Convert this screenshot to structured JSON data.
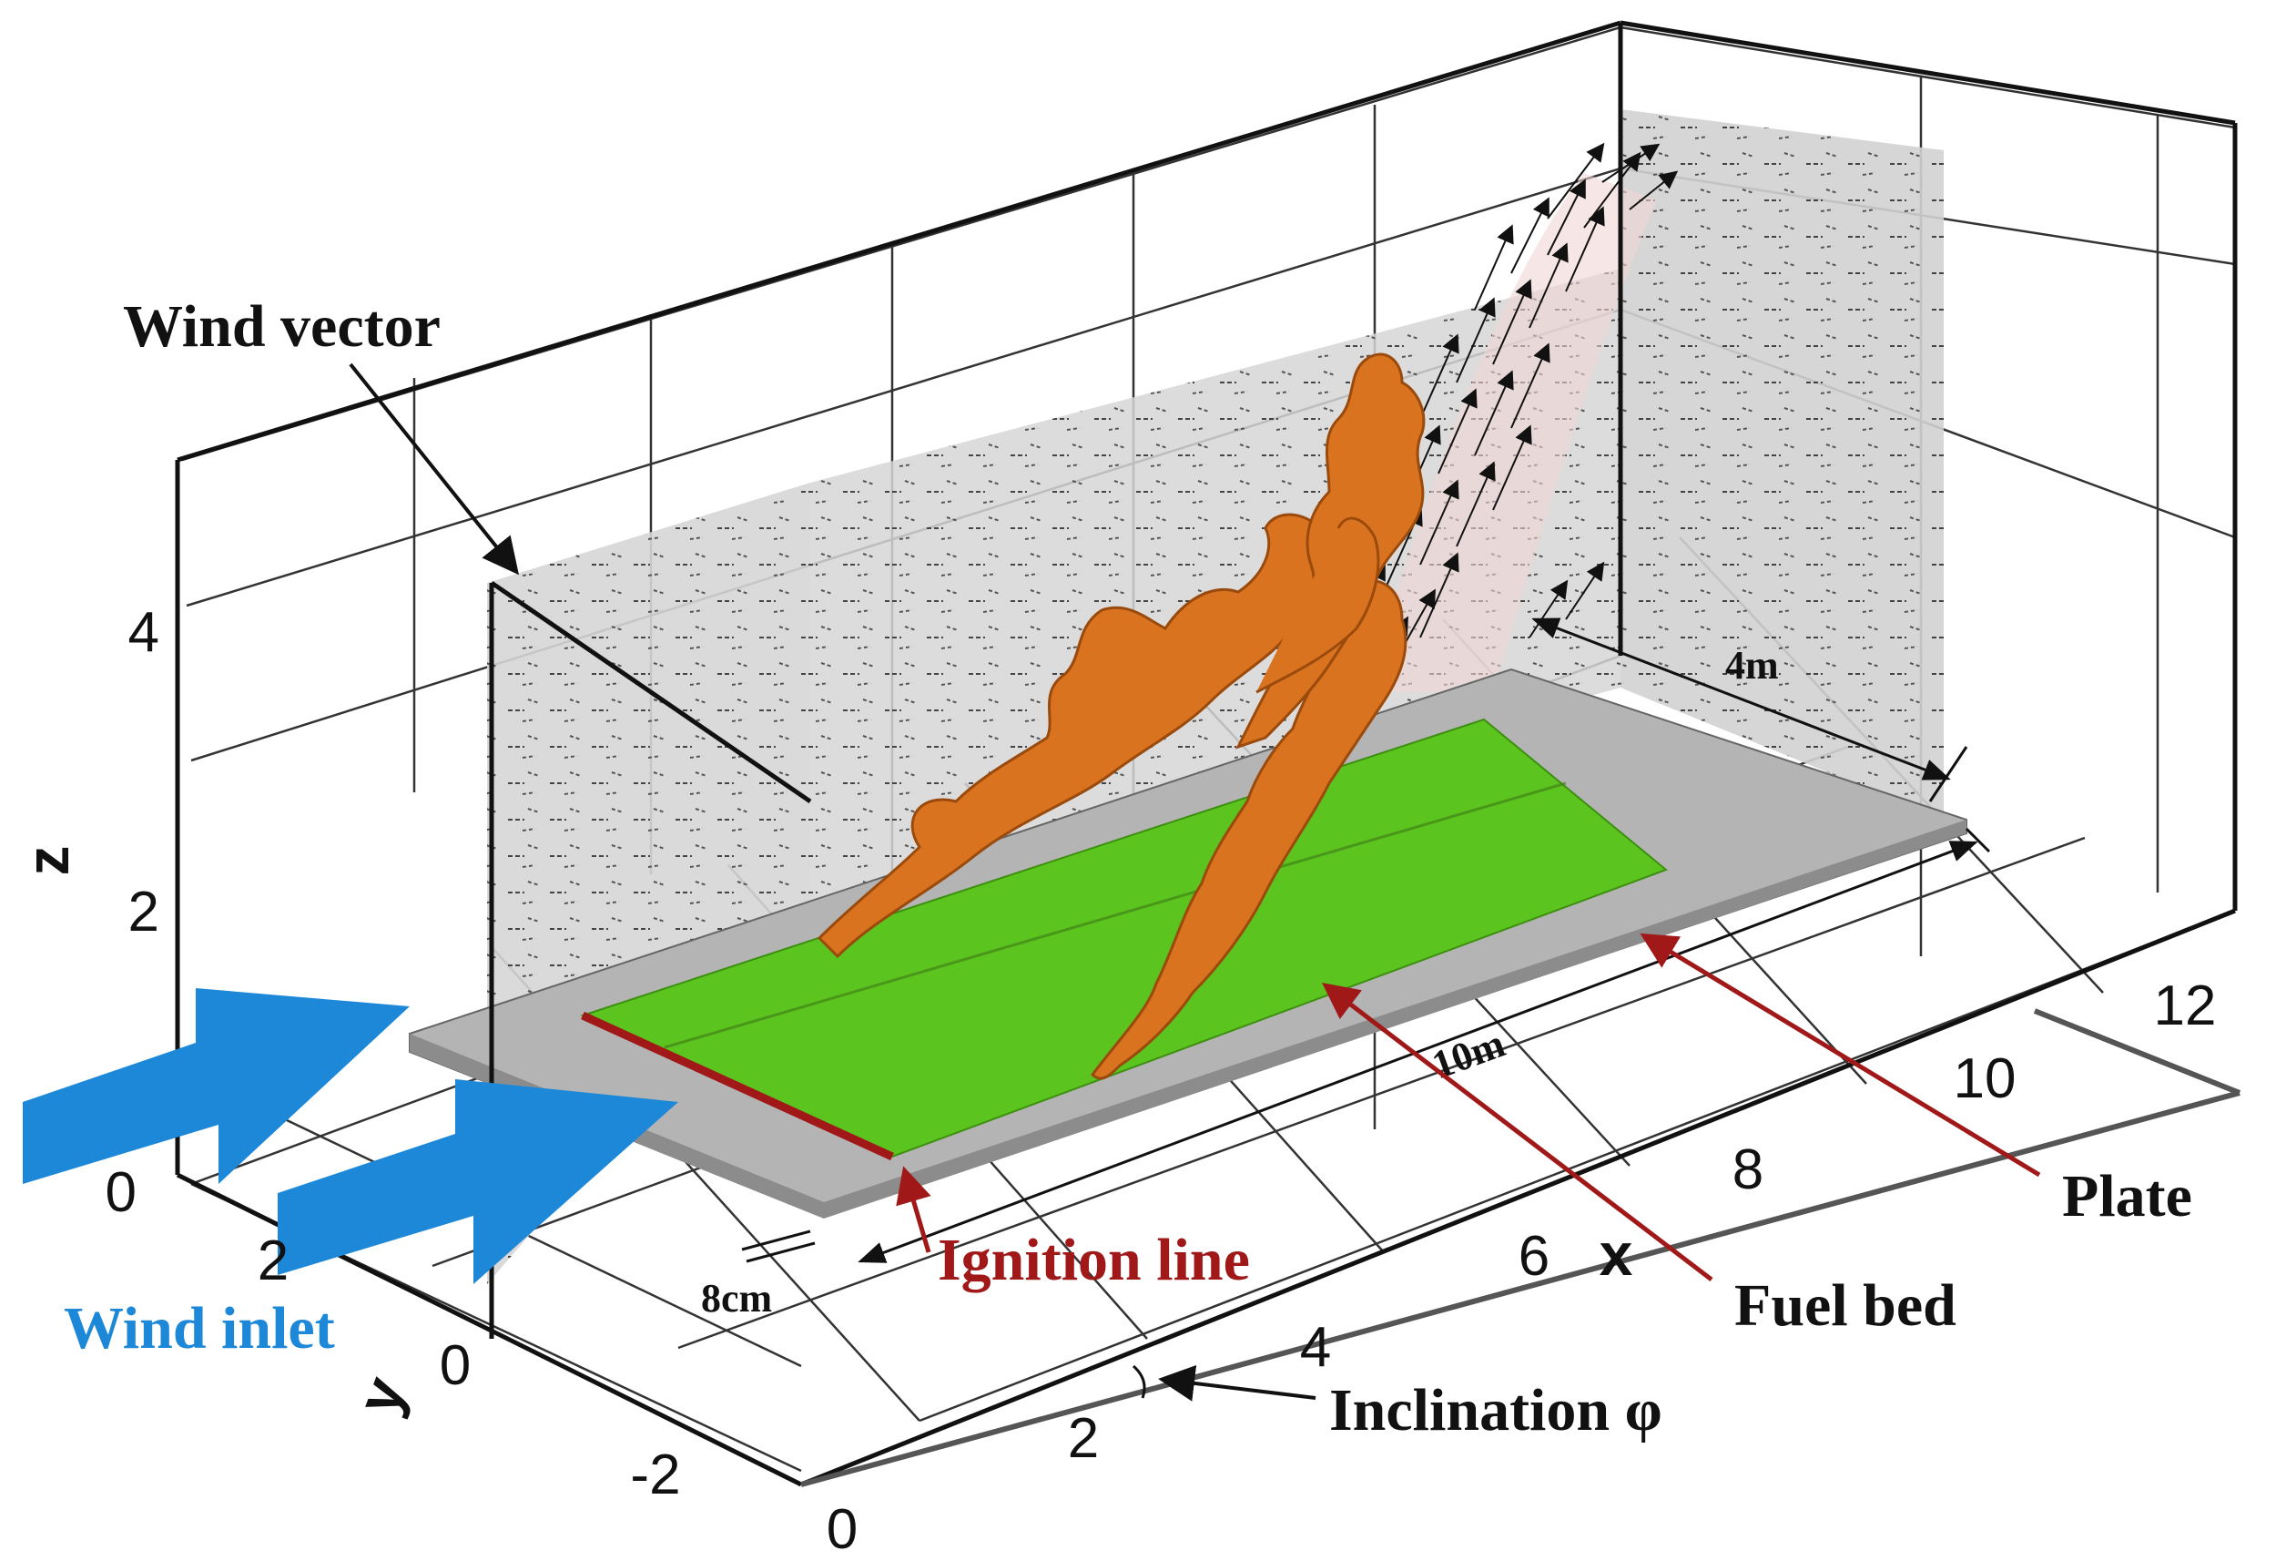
{
  "labels": {
    "wind_vector": "Wind vector",
    "wind_inlet": "Wind inlet",
    "ignition_line": "Ignition line",
    "fuel_bed": "Fuel bed",
    "plate": "Plate",
    "inclination": "Inclination φ",
    "dim_4m": "4m",
    "dim_10m": "10m",
    "dim_8cm": "8cm"
  },
  "axes": {
    "x": {
      "name": "x",
      "ticks": [
        "0",
        "2",
        "4",
        "6",
        "8",
        "10",
        "12"
      ]
    },
    "y": {
      "name": "y",
      "ticks": [
        "2",
        "0",
        "-2"
      ]
    },
    "z": {
      "name": "z",
      "ticks": [
        "0",
        "2",
        "4"
      ]
    }
  },
  "colors": {
    "fuel_bed": "#5cc41e",
    "plate": "#b4b4b4",
    "flame": "#d9731f",
    "ignition_line": "#a01818",
    "wind_arrow": "#1e88d8",
    "label_red": "#a01818",
    "label_blue": "#1e88d8"
  }
}
